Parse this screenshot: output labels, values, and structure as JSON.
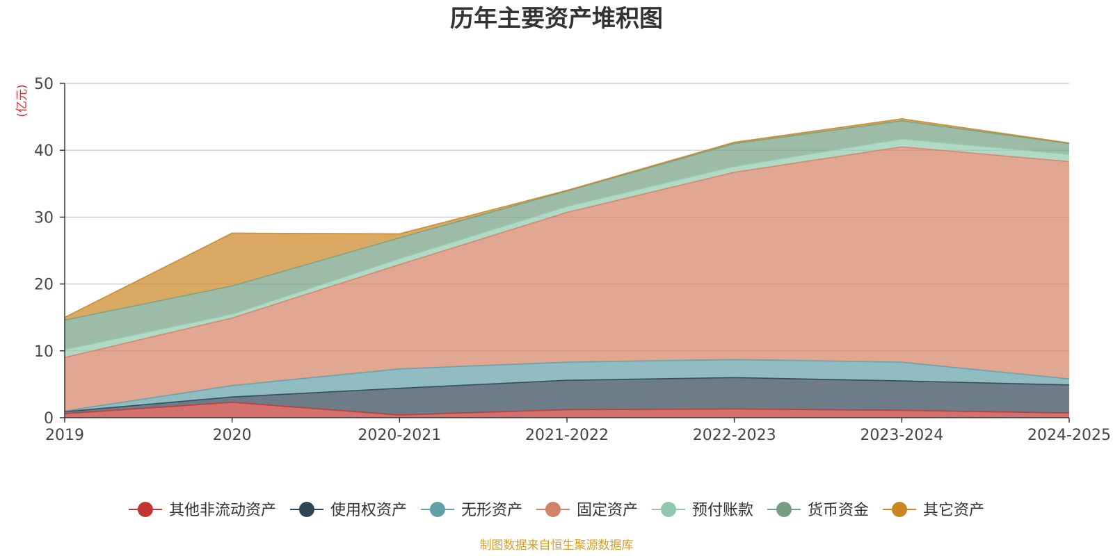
{
  "colors": {
    "background": "#ffffff",
    "grid": "#c8c8cc",
    "axis": "#333333",
    "unit_label": "#e8242c",
    "source_label": "#d3a02c",
    "title": "#333333"
  },
  "chart_data": {
    "type": "area",
    "stacked": true,
    "title": "历年主要资产堆积图",
    "unit": "(亿元)",
    "source": "制图数据来自恒生聚源数据库",
    "categories": [
      "2019",
      "2020",
      "2020-2021",
      "2021-2022",
      "2022-2023",
      "2023-2024",
      "2024-2025"
    ],
    "ylim": [
      0,
      50
    ],
    "yticks": [
      0,
      10,
      20,
      30,
      40,
      50
    ],
    "grid": true,
    "legend_position": "bottom",
    "series": [
      {
        "name": "其他非流动资产",
        "color": "#c23531",
        "values": [
          0.6,
          2.3,
          0.4,
          1.2,
          1.3,
          1.1,
          0.7
        ]
      },
      {
        "name": "使用权资产",
        "color": "#2f4554",
        "values": [
          0.3,
          0.8,
          4.0,
          4.4,
          4.7,
          4.4,
          4.2
        ]
      },
      {
        "name": "无形资产",
        "color": "#61a0a8",
        "values": [
          0.1,
          1.7,
          2.9,
          2.7,
          2.7,
          2.8,
          0.9
        ]
      },
      {
        "name": "固定资产",
        "color": "#d48265",
        "values": [
          8.0,
          10.1,
          15.6,
          22.4,
          28.0,
          32.2,
          32.5
        ]
      },
      {
        "name": "预付账款",
        "color": "#91c7ae",
        "values": [
          1.2,
          0.6,
          0.9,
          0.9,
          0.9,
          1.2,
          1.1
        ]
      },
      {
        "name": "货币资金",
        "color": "#749f83",
        "values": [
          4.4,
          4.2,
          3.1,
          2.3,
          3.4,
          2.7,
          1.6
        ]
      },
      {
        "name": "其它资产",
        "color": "#ca8622",
        "values": [
          0.4,
          7.9,
          0.6,
          0.1,
          0.2,
          0.3,
          0.1
        ]
      }
    ]
  }
}
